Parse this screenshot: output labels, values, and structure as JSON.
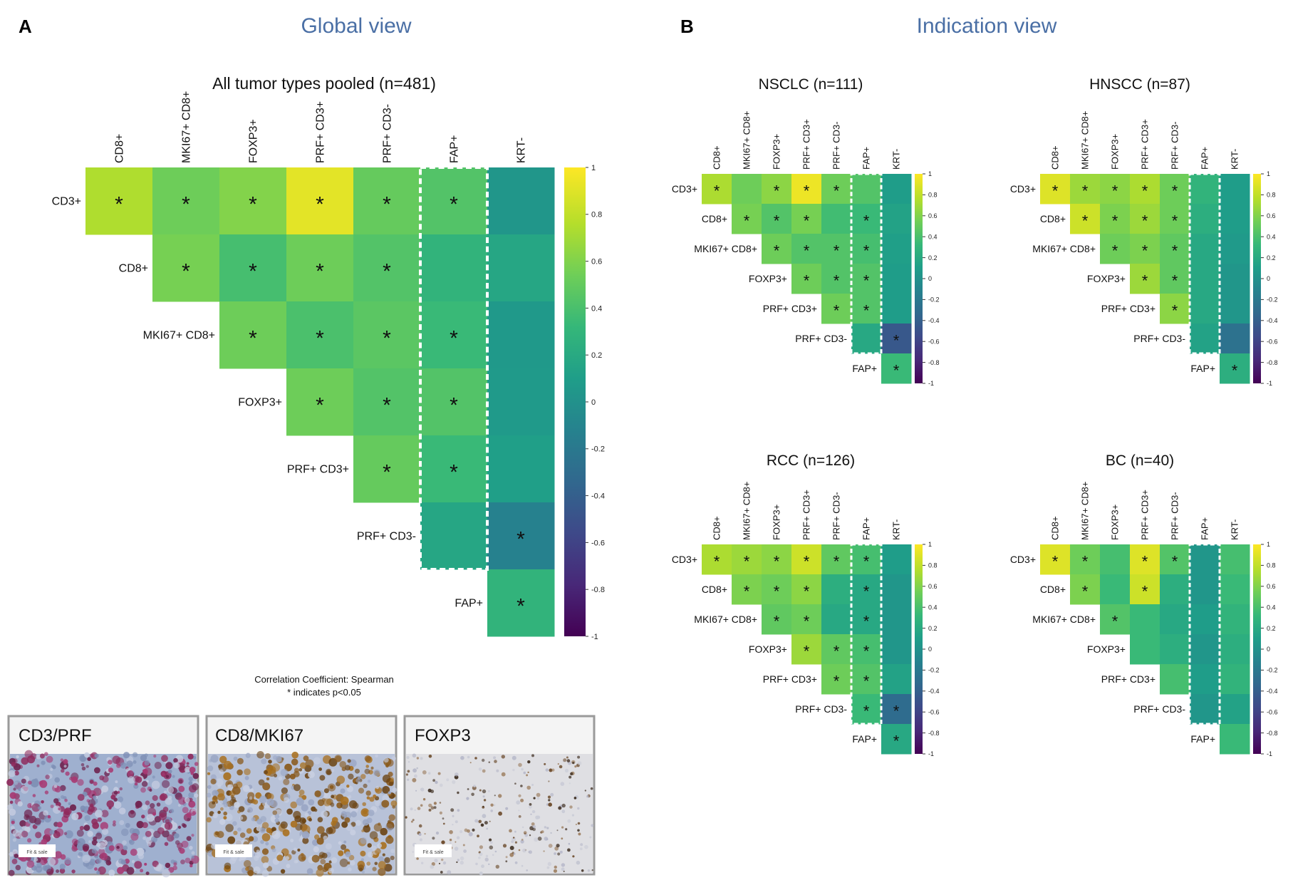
{
  "figure": {
    "panel_a": {
      "letter": "A",
      "heading": "Global view"
    },
    "panel_b": {
      "letter": "B",
      "heading": "Indication view"
    },
    "caption_line1": "Correlation Coefficient: Spearman",
    "caption_line2": "* indicates p<0.05",
    "micrographs": [
      {
        "label": "CD3/PRF",
        "stain": "purple"
      },
      {
        "label": "CD8/MKI67",
        "stain": "brown"
      },
      {
        "label": "FOXP3",
        "stain": "sparse"
      }
    ],
    "scale_bar_text": "Fit & sale",
    "colormap": [
      "#440154",
      "#482878",
      "#3e4989",
      "#31688e",
      "#26828e",
      "#1f9e89",
      "#35b779",
      "#6ece58",
      "#b5de2b",
      "#fde725"
    ]
  },
  "chart_data": [
    {
      "type": "heatmap",
      "id": "pooled",
      "title": "All tumor types pooled (n=481)",
      "columns": [
        "CD8+",
        "MKI67+ CD8+",
        "FOXP3+",
        "PRF+ CD3+",
        "PRF+ CD3-",
        "FAP+",
        "KRT-"
      ],
      "rows": [
        "CD3+",
        "CD8+",
        "MKI67+ CD8+",
        "FOXP3+",
        "PRF+ CD3+",
        "PRF+ CD3-",
        "FAP+"
      ],
      "values": [
        [
          0.76,
          0.55,
          0.62,
          0.92,
          0.52,
          0.45,
          0.05
        ],
        [
          null,
          0.58,
          0.4,
          0.55,
          0.45,
          0.3,
          0.18
        ],
        [
          null,
          null,
          0.55,
          0.42,
          0.48,
          0.35,
          0.07
        ],
        [
          null,
          null,
          null,
          0.55,
          0.45,
          0.45,
          0.08
        ],
        [
          null,
          null,
          null,
          null,
          0.52,
          0.35,
          0.12
        ],
        [
          null,
          null,
          null,
          null,
          null,
          0.18,
          -0.12
        ],
        [
          null,
          null,
          null,
          null,
          null,
          null,
          0.3
        ]
      ],
      "significant": [
        [
          1,
          1,
          1,
          1,
          1,
          1,
          0
        ],
        [
          0,
          1,
          1,
          1,
          1,
          0,
          0
        ],
        [
          0,
          0,
          1,
          1,
          1,
          1,
          0
        ],
        [
          0,
          0,
          0,
          1,
          1,
          1,
          0
        ],
        [
          0,
          0,
          0,
          0,
          1,
          1,
          0
        ],
        [
          0,
          0,
          0,
          0,
          0,
          0,
          1
        ],
        [
          0,
          0,
          0,
          0,
          0,
          0,
          1
        ]
      ],
      "highlight_column": "FAP+",
      "colorbar": {
        "min": -1,
        "max": 1,
        "ticks": [
          "1",
          "0.8",
          "0.6",
          "0.4",
          "0.2",
          "0",
          "-0.2",
          "-0.4",
          "-0.6",
          "-0.8",
          "-1"
        ]
      }
    },
    {
      "type": "heatmap",
      "id": "nsclc",
      "title": "NSCLC (n=111)",
      "columns": [
        "CD8+",
        "MKI67+ CD8+",
        "FOXP3+",
        "PRF+ CD3+",
        "PRF+ CD3-",
        "FAP+",
        "KRT-"
      ],
      "rows": [
        "CD3+",
        "CD8+",
        "MKI67+ CD8+",
        "FOXP3+",
        "PRF+ CD3+",
        "PRF+ CD3-",
        "FAP+"
      ],
      "values": [
        [
          0.75,
          0.55,
          0.65,
          0.95,
          0.55,
          0.45,
          0.1
        ],
        [
          null,
          0.58,
          0.45,
          0.58,
          0.38,
          0.35,
          0.15
        ],
        [
          null,
          null,
          0.55,
          0.45,
          0.45,
          0.4,
          0.12
        ],
        [
          null,
          null,
          null,
          0.55,
          0.45,
          0.45,
          0.1
        ],
        [
          null,
          null,
          null,
          null,
          0.55,
          0.45,
          0.1
        ],
        [
          null,
          null,
          null,
          null,
          null,
          0.2,
          -0.45
        ],
        [
          null,
          null,
          null,
          null,
          null,
          null,
          0.35
        ]
      ],
      "significant": [
        [
          1,
          0,
          1,
          1,
          1,
          0,
          0
        ],
        [
          0,
          1,
          1,
          1,
          0,
          1,
          0
        ],
        [
          0,
          0,
          1,
          1,
          1,
          1,
          0
        ],
        [
          0,
          0,
          0,
          1,
          1,
          1,
          0
        ],
        [
          0,
          0,
          0,
          0,
          1,
          1,
          0
        ],
        [
          0,
          0,
          0,
          0,
          0,
          0,
          1
        ],
        [
          0,
          0,
          0,
          0,
          0,
          0,
          1
        ]
      ],
      "highlight_column": "FAP+",
      "colorbar": {
        "min": -1,
        "max": 1,
        "ticks": [
          "1",
          "0.8",
          "0.6",
          "0.4",
          "0.2",
          "0",
          "-0.2",
          "-0.4",
          "-0.6",
          "-0.8",
          "-1"
        ]
      }
    },
    {
      "type": "heatmap",
      "id": "hnscc",
      "title": "HNSCC (n=87)",
      "columns": [
        "CD8+",
        "MKI67+ CD8+",
        "FOXP3+",
        "PRF+ CD3+",
        "PRF+ CD3-",
        "FAP+",
        "KRT-"
      ],
      "rows": [
        "CD3+",
        "CD8+",
        "MKI67+ CD8+",
        "FOXP3+",
        "PRF+ CD3+",
        "PRF+ CD3-",
        "FAP+"
      ],
      "values": [
        [
          0.9,
          0.7,
          0.65,
          0.75,
          0.55,
          0.3,
          0.1
        ],
        [
          null,
          0.85,
          0.6,
          0.7,
          0.55,
          0.25,
          0.1
        ],
        [
          null,
          null,
          0.55,
          0.6,
          0.5,
          0.2,
          0.08
        ],
        [
          null,
          null,
          null,
          0.7,
          0.5,
          0.2,
          0.05
        ],
        [
          null,
          null,
          null,
          null,
          0.65,
          0.2,
          0.05
        ],
        [
          null,
          null,
          null,
          null,
          null,
          0.15,
          -0.25
        ],
        [
          null,
          null,
          null,
          null,
          null,
          null,
          0.25
        ]
      ],
      "significant": [
        [
          1,
          1,
          1,
          1,
          1,
          0,
          0
        ],
        [
          0,
          1,
          1,
          1,
          1,
          0,
          0
        ],
        [
          0,
          0,
          1,
          1,
          1,
          0,
          0
        ],
        [
          0,
          0,
          0,
          1,
          1,
          0,
          0
        ],
        [
          0,
          0,
          0,
          0,
          1,
          0,
          0
        ],
        [
          0,
          0,
          0,
          0,
          0,
          0,
          0
        ],
        [
          0,
          0,
          0,
          0,
          0,
          0,
          1
        ]
      ],
      "highlight_column": "FAP+",
      "colorbar": {
        "min": -1,
        "max": 1,
        "ticks": [
          "1",
          "0.8",
          "0.6",
          "0.4",
          "0.2",
          "0",
          "-0.2",
          "-0.4",
          "-0.6",
          "-0.8",
          "-1"
        ]
      }
    },
    {
      "type": "heatmap",
      "id": "rcc",
      "title": "RCC (n=126)",
      "columns": [
        "CD8+",
        "MKI67+ CD8+",
        "FOXP3+",
        "PRF+ CD3+",
        "PRF+ CD3-",
        "FAP+",
        "KRT-"
      ],
      "rows": [
        "CD3+",
        "CD8+",
        "MKI67+ CD8+",
        "FOXP3+",
        "PRF+ CD3+",
        "PRF+ CD3-",
        "FAP+"
      ],
      "values": [
        [
          0.75,
          0.7,
          0.65,
          0.85,
          0.5,
          0.4,
          0.1
        ],
        [
          null,
          0.6,
          0.55,
          0.65,
          0.25,
          0.2,
          0.05
        ],
        [
          null,
          null,
          0.5,
          0.55,
          0.2,
          0.2,
          0.05
        ],
        [
          null,
          null,
          null,
          0.7,
          0.5,
          0.4,
          0.05
        ],
        [
          null,
          null,
          null,
          null,
          0.55,
          0.45,
          0.15
        ],
        [
          null,
          null,
          null,
          null,
          null,
          0.35,
          -0.3
        ],
        [
          null,
          null,
          null,
          null,
          null,
          null,
          0.2
        ]
      ],
      "significant": [
        [
          1,
          1,
          1,
          1,
          1,
          1,
          0
        ],
        [
          0,
          1,
          1,
          1,
          0,
          1,
          0
        ],
        [
          0,
          0,
          1,
          1,
          0,
          1,
          0
        ],
        [
          0,
          0,
          0,
          1,
          1,
          1,
          0
        ],
        [
          0,
          0,
          0,
          0,
          1,
          1,
          0
        ],
        [
          0,
          0,
          0,
          0,
          0,
          1,
          1
        ],
        [
          0,
          0,
          0,
          0,
          0,
          0,
          1
        ]
      ],
      "highlight_column": "FAP+",
      "colorbar": {
        "min": -1,
        "max": 1,
        "ticks": [
          "1",
          "0.8",
          "0.6",
          "0.4",
          "0.2",
          "0",
          "-0.2",
          "-0.4",
          "-0.6",
          "-0.8",
          "-1"
        ]
      }
    },
    {
      "type": "heatmap",
      "id": "bc",
      "title": "BC (n=40)",
      "columns": [
        "CD8+",
        "MKI67+ CD8+",
        "FOXP3+",
        "PRF+ CD3+",
        "PRF+ CD3-",
        "FAP+",
        "KRT-"
      ],
      "rows": [
        "CD3+",
        "CD8+",
        "MKI67+ CD8+",
        "FOXP3+",
        "PRF+ CD3+",
        "PRF+ CD3-",
        "FAP+"
      ],
      "values": [
        [
          0.9,
          0.55,
          0.4,
          0.9,
          0.45,
          0.05,
          0.4
        ],
        [
          null,
          0.6,
          0.35,
          0.85,
          0.25,
          0.05,
          0.35
        ],
        [
          null,
          null,
          0.45,
          0.35,
          0.2,
          0.1,
          0.3
        ],
        [
          null,
          null,
          null,
          0.35,
          0.25,
          0.05,
          0.25
        ],
        [
          null,
          null,
          null,
          null,
          0.4,
          0.1,
          0.3
        ],
        [
          null,
          null,
          null,
          null,
          null,
          0.05,
          0.15
        ],
        [
          null,
          null,
          null,
          null,
          null,
          null,
          0.35
        ]
      ],
      "significant": [
        [
          1,
          1,
          0,
          1,
          1,
          0,
          0
        ],
        [
          0,
          1,
          0,
          1,
          0,
          0,
          0
        ],
        [
          0,
          0,
          1,
          0,
          0,
          0,
          0
        ],
        [
          0,
          0,
          0,
          0,
          0,
          0,
          0
        ],
        [
          0,
          0,
          0,
          0,
          0,
          0,
          0
        ],
        [
          0,
          0,
          0,
          0,
          0,
          0,
          0
        ],
        [
          0,
          0,
          0,
          0,
          0,
          0,
          0
        ]
      ],
      "highlight_column": "FAP+",
      "colorbar": {
        "min": -1,
        "max": 1,
        "ticks": [
          "1",
          "0.8",
          "0.6",
          "0.4",
          "0.2",
          "0",
          "-0.2",
          "-0.4",
          "-0.6",
          "-0.8",
          "-1"
        ]
      }
    }
  ]
}
